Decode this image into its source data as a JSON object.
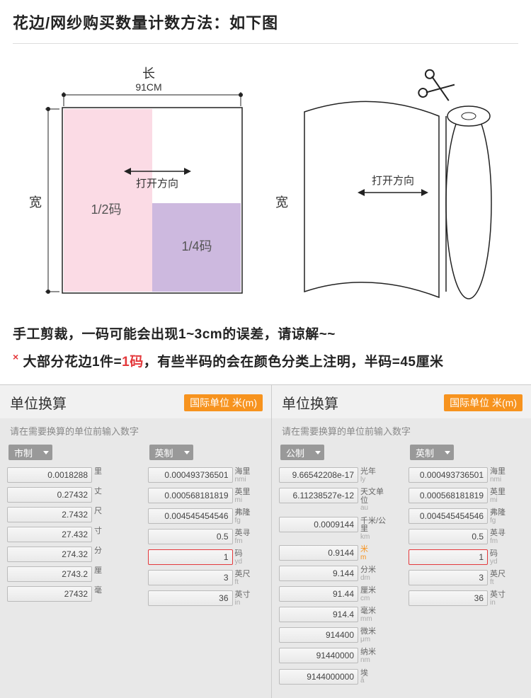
{
  "header": {
    "title": "花边/网纱购买数量计数方法：如下图"
  },
  "diagram1": {
    "length_label": "长",
    "length_value": "91CM",
    "width_label": "宽",
    "arrow_label": "打开方向",
    "half_label": "1/2码",
    "quarter_label": "1/4码",
    "colors": {
      "half": "#fbdbe5",
      "quarter": "#cdb9df",
      "border": "#222"
    }
  },
  "diagram2": {
    "width_label": "宽",
    "arrow_label": "打开方向"
  },
  "notes": {
    "line1": "手工剪裁，一码可能会出现1~3cm的误差，请谅解~~",
    "line2a": "大部分花边1件=",
    "line2em": "1码",
    "line2b": "，有些半码的会在颜色分类上注明，半码=45厘米"
  },
  "panelL": {
    "title": "单位换算",
    "badge": "国际单位  米(m)",
    "sub": "请在需要换算的单位前输入数字",
    "sel1": "市制",
    "sel2": "英制",
    "col1": [
      {
        "v": "0.0018288",
        "u1": "里",
        "u2": ""
      },
      {
        "v": "0.27432",
        "u1": "丈",
        "u2": ""
      },
      {
        "v": "2.7432",
        "u1": "尺",
        "u2": ""
      },
      {
        "v": "27.432",
        "u1": "寸",
        "u2": ""
      },
      {
        "v": "274.32",
        "u1": "分",
        "u2": ""
      },
      {
        "v": "2743.2",
        "u1": "厘",
        "u2": ""
      },
      {
        "v": "27432",
        "u1": "毫",
        "u2": ""
      }
    ],
    "col2": [
      {
        "v": "0.000493736501",
        "u1": "海里",
        "u2": "nmi"
      },
      {
        "v": "0.000568181819",
        "u1": "英里",
        "u2": "mi"
      },
      {
        "v": "0.004545454546",
        "u1": "弗隆",
        "u2": "fg"
      },
      {
        "v": "0.5",
        "u1": "英寻",
        "u2": "fm"
      },
      {
        "v": "1",
        "u1": "码",
        "u2": "yd",
        "hot": true
      },
      {
        "v": "3",
        "u1": "英尺",
        "u2": "ft"
      },
      {
        "v": "36",
        "u1": "英寸",
        "u2": "in"
      }
    ]
  },
  "panelR": {
    "title": "单位换算",
    "badge": "国际单位  米(m)",
    "sub": "请在需要换算的单位前输入数字",
    "sel1": "公制",
    "sel2": "英制",
    "col1": [
      {
        "v": "9.66542208e-17",
        "u1": "光年",
        "u2": "ly"
      },
      {
        "v": "6.11238527e-12",
        "u1": "天文单位",
        "u2": "au"
      },
      {
        "v": "0.0009144",
        "u1": "千米/公里",
        "u2": "km"
      },
      {
        "v": "0.9144",
        "u1": "米",
        "u2": "m",
        "orange": true
      },
      {
        "v": "9.144",
        "u1": "分米",
        "u2": "dm"
      },
      {
        "v": "91.44",
        "u1": "厘米",
        "u2": "cm"
      },
      {
        "v": "914.4",
        "u1": "毫米",
        "u2": "mm"
      },
      {
        "v": "914400",
        "u1": "微米",
        "u2": "μm"
      },
      {
        "v": "91440000",
        "u1": "纳米",
        "u2": "nm"
      },
      {
        "v": "9144000000",
        "u1": "埃",
        "u2": "å"
      }
    ],
    "col2": [
      {
        "v": "0.000493736501",
        "u1": "海里",
        "u2": "nmi"
      },
      {
        "v": "0.000568181819",
        "u1": "英里",
        "u2": "mi"
      },
      {
        "v": "0.004545454546",
        "u1": "弗隆",
        "u2": "fg"
      },
      {
        "v": "0.5",
        "u1": "英寻",
        "u2": "fm"
      },
      {
        "v": "1",
        "u1": "码",
        "u2": "yd",
        "hot": true
      },
      {
        "v": "3",
        "u1": "英尺",
        "u2": "ft"
      },
      {
        "v": "36",
        "u1": "英寸",
        "u2": "in"
      }
    ]
  }
}
